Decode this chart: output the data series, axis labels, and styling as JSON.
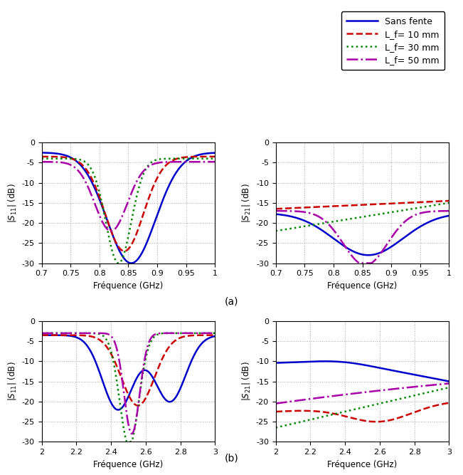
{
  "legend_labels": [
    "Sans fente",
    "L_f= 10 mm",
    "L_f= 30 mm",
    "L_f= 50 mm"
  ],
  "legend_colors": [
    "#0000cc",
    "#cc0000",
    "#008800",
    "#aa00aa"
  ],
  "legend_styles": [
    "-",
    "--",
    ":",
    "-."
  ],
  "legend_linewidths": [
    1.8,
    1.8,
    1.8,
    1.8
  ],
  "title_a": "(a)",
  "title_b": "(b)",
  "xlabel": "Fréquence (GHz)",
  "ylabel_s11": "|S$_{11}$| (dB)",
  "ylabel_s21": "|S$_{21}$| (dB)",
  "ylim": [
    -30,
    0
  ],
  "yticks": [
    0,
    -5,
    -10,
    -15,
    -20,
    -25,
    -30
  ],
  "band_a_xlim": [
    0.7,
    1.0
  ],
  "band_a_xticks": [
    0.7,
    0.75,
    0.8,
    0.85,
    0.9,
    0.95,
    1.0
  ],
  "band_b_xlim": [
    2.0,
    3.0
  ],
  "band_b_xticks": [
    2.0,
    2.2,
    2.4,
    2.6,
    2.8,
    3.0
  ],
  "background_color": "#ffffff",
  "grid_color": "#aaaaaa",
  "grid_linestyle": ":",
  "grid_linewidth": 0.7
}
